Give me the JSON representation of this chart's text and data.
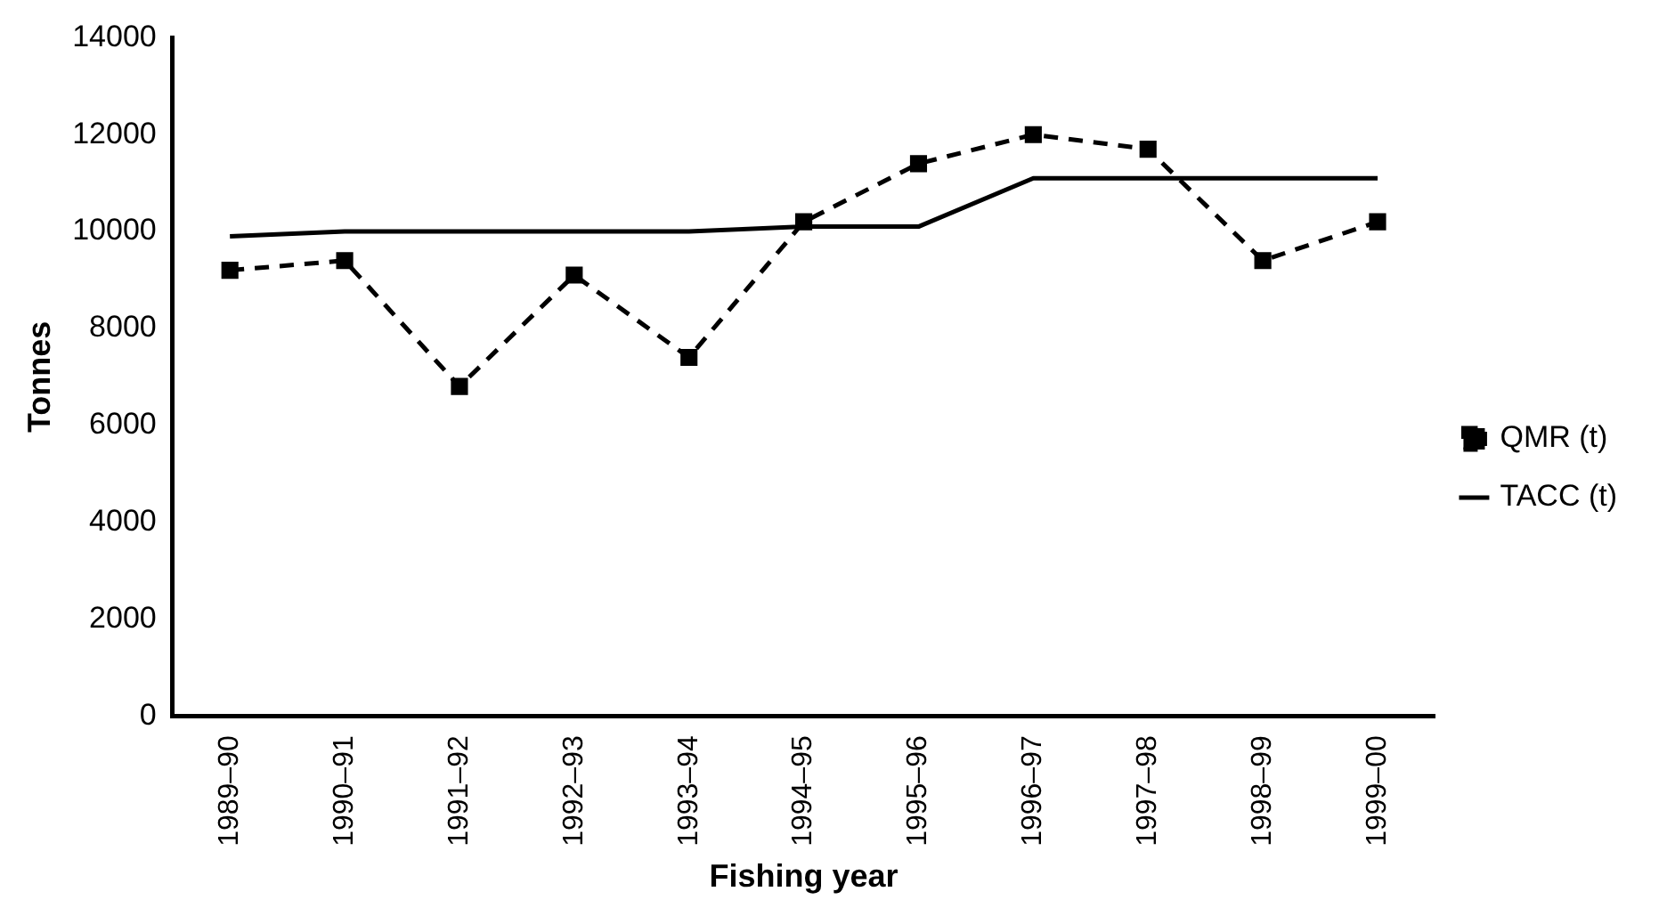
{
  "chart_data": {
    "type": "line",
    "xlabel": "Fishing year",
    "ylabel": "Tonnes",
    "categories": [
      "1989–90",
      "1990–91",
      "1991–92",
      "1992–93",
      "1993–94",
      "1994–95",
      "1995–96",
      "1996–97",
      "1997–98",
      "1998–99",
      "1999–00"
    ],
    "series": [
      {
        "name": "QMR (t)",
        "color": "#000000",
        "marker": "square",
        "line_style": "dashed",
        "values": [
          9200,
          9400,
          6800,
          9100,
          7400,
          10200,
          11400,
          12000,
          11700,
          9400,
          10200
        ]
      },
      {
        "name": "TACC (t)",
        "color": "#000000",
        "marker": "none",
        "line_style": "solid",
        "values": [
          9900,
          10000,
          10000,
          10000,
          10000,
          10100,
          10100,
          11100,
          11100,
          11100,
          11100
        ]
      }
    ],
    "ylim": [
      0,
      14000
    ],
    "yticks": [
      0,
      2000,
      4000,
      6000,
      8000,
      10000,
      12000,
      14000
    ],
    "grid": false,
    "legend": "right"
  }
}
